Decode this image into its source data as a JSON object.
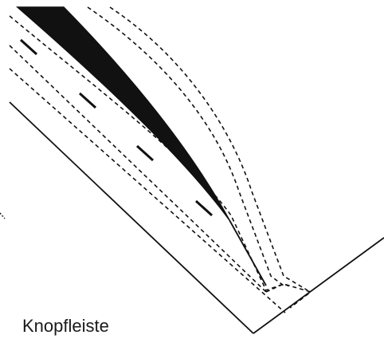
{
  "diagram": {
    "label": "Knopfleiste",
    "colors": {
      "ink": "#111111",
      "background": "#ffffff"
    }
  }
}
